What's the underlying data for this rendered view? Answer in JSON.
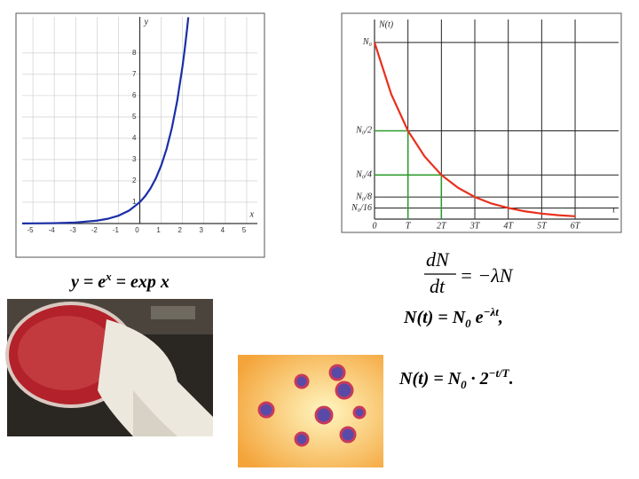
{
  "chart_data": [
    {
      "type": "line",
      "x_label": "x",
      "y_label": "y",
      "x": [
        -5.5,
        -5,
        -4,
        -3,
        -2,
        -1.5,
        -1,
        -0.5,
        0,
        0.25,
        0.5,
        0.75,
        1,
        1.25,
        1.5,
        1.75,
        2,
        2.1,
        2.2,
        2.27
      ],
      "series": [
        {
          "color": "#1a2fa8",
          "values": [
            0.004,
            0.007,
            0.018,
            0.05,
            0.135,
            0.223,
            0.368,
            0.607,
            1,
            1.284,
            1.649,
            2.117,
            2.718,
            3.49,
            4.482,
            5.755,
            7.389,
            8.166,
            9.025,
            9.679
          ]
        }
      ],
      "xlim": [
        -5.5,
        5.5
      ],
      "ylim": [
        0,
        9.7
      ],
      "xticks": [
        -5,
        -4,
        -3,
        -2,
        -1,
        0,
        1,
        2,
        3,
        4,
        5
      ],
      "yticks": [
        1,
        2,
        3,
        4,
        5,
        6,
        7,
        8
      ],
      "grid": true
    },
    {
      "type": "line",
      "x_label": "t",
      "y_label": "N(t)",
      "x": [
        0,
        0.5,
        1,
        1.5,
        2,
        2.5,
        3,
        3.5,
        4,
        4.5,
        5,
        5.5,
        6
      ],
      "series": [
        {
          "color": "#e8301c",
          "values": [
            1,
            0.707,
            0.5,
            0.354,
            0.25,
            0.177,
            0.125,
            0.088,
            0.063,
            0.044,
            0.031,
            0.022,
            0.016
          ]
        }
      ],
      "xlim": [
        0,
        7.3
      ],
      "ylim": [
        0,
        1.13
      ],
      "xticks": [
        0,
        {
          "value": 1,
          "label": "T"
        },
        {
          "value": 2,
          "label": "2T"
        },
        {
          "value": 3,
          "label": "3T"
        },
        {
          "value": 4,
          "label": "4T"
        },
        {
          "value": 5,
          "label": "5T"
        },
        {
          "value": 6,
          "label": "6T"
        }
      ],
      "yticks": [
        {
          "value": 1,
          "label": "N₀"
        },
        {
          "value": 0.5,
          "label": "N₀/2"
        },
        {
          "value": 0.25,
          "label": "N₀/4"
        },
        {
          "value": 0.125,
          "label": "N₀/8"
        },
        {
          "value": 0.0625,
          "label": "N₀/16"
        }
      ],
      "grid": true,
      "guide_color": "#2a9a2a",
      "guides": [
        {
          "x": 1,
          "y": 0.5
        },
        {
          "x": 2,
          "y": 0.25
        }
      ]
    }
  ],
  "formula_exp": [
    "y = e",
    "x",
    " = exp x"
  ],
  "formula_rate": {
    "numerator": "dN",
    "denominator": "dt",
    "rhs": "= −λN"
  },
  "formula_decay": [
    "N(t) = N",
    "0",
    " e",
    "−λt",
    ","
  ],
  "formula_half": [
    "N(t) = N",
    "0",
    " · 2",
    "−t/T",
    "."
  ]
}
